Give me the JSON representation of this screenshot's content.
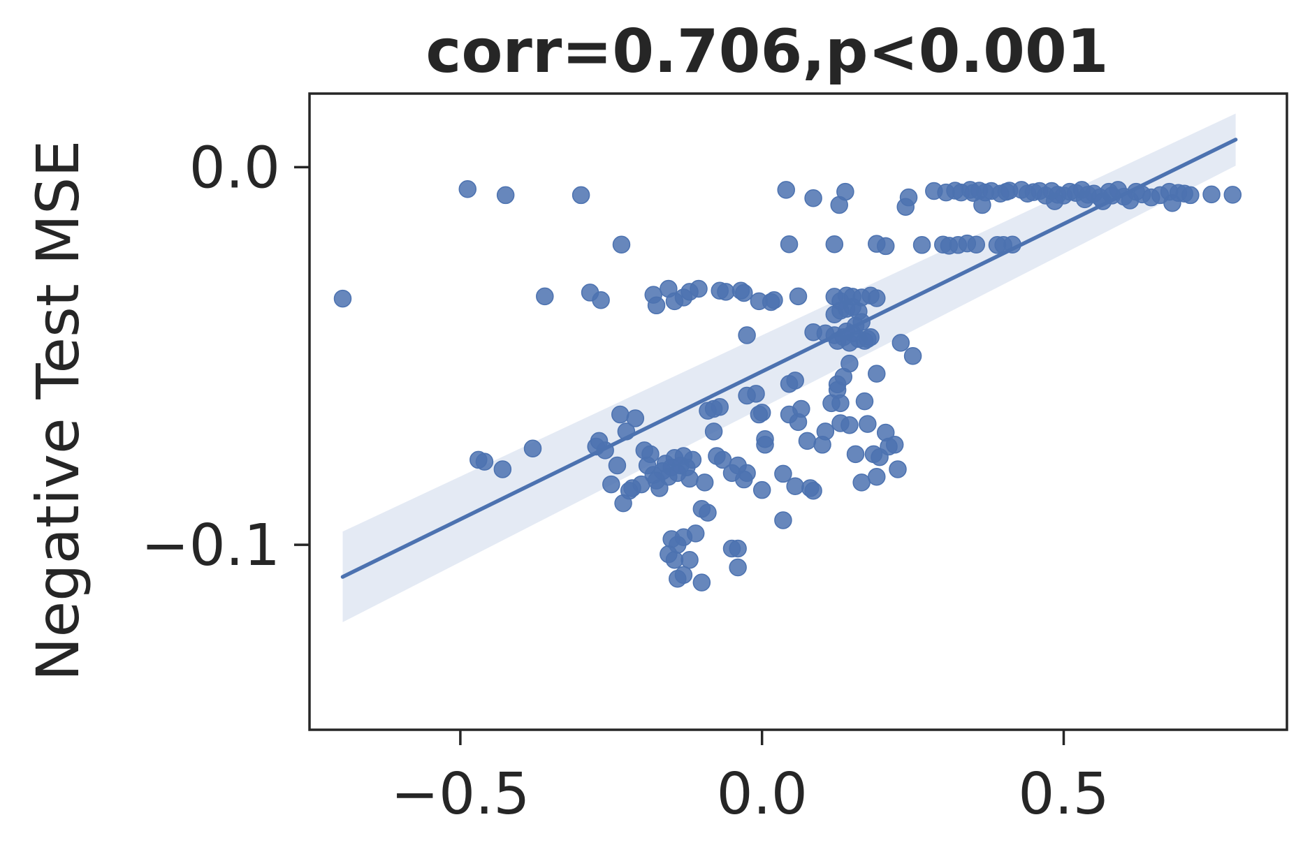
{
  "chart_data": {
    "type": "scatter",
    "title": "corr=0.706,p<0.001",
    "xlabel": "",
    "ylabel": "Negative Test MSE",
    "xlim": [
      -0.75,
      0.87
    ],
    "ylim": [
      -0.149,
      0.0195
    ],
    "x_ticks": [
      -0.5,
      0.0,
      0.5
    ],
    "x_tick_labels": [
      "−0.5",
      "0.0",
      "0.5"
    ],
    "y_ticks": [
      0.0,
      -0.1
    ],
    "y_tick_labels": [
      "0.0",
      "−0.1"
    ],
    "grid": false,
    "colors": {
      "points": "#4c72b0",
      "line": "#4c72b0",
      "band": "#dbe3f0",
      "axes": "#262626"
    },
    "regression": {
      "x": [
        -0.695,
        0.785
      ],
      "y": [
        -0.1085,
        0.0073
      ],
      "band_lower": [
        -0.1205,
        0.0004
      ],
      "band_upper": [
        -0.0965,
        0.0142
      ]
    },
    "points": [
      [
        -0.695,
        -0.0348
      ],
      [
        -0.488,
        -0.0058
      ],
      [
        -0.425,
        -0.0074
      ],
      [
        -0.36,
        -0.0342
      ],
      [
        -0.3,
        -0.0074
      ],
      [
        -0.285,
        -0.0332
      ],
      [
        -0.267,
        -0.0352
      ],
      [
        -0.233,
        -0.0205
      ],
      [
        -0.18,
        -0.0338
      ],
      [
        -0.175,
        -0.0366
      ],
      [
        -0.155,
        -0.0322
      ],
      [
        -0.145,
        -0.0355
      ],
      [
        -0.13,
        -0.0345
      ],
      [
        -0.12,
        -0.033
      ],
      [
        -0.105,
        -0.0322
      ],
      [
        -0.07,
        -0.0327
      ],
      [
        -0.06,
        -0.033
      ],
      [
        -0.035,
        -0.0327
      ],
      [
        -0.03,
        -0.0333
      ],
      [
        -0.025,
        -0.0445
      ],
      [
        -0.005,
        -0.0355
      ],
      [
        0.015,
        -0.0357
      ],
      [
        0.02,
        -0.0352
      ],
      [
        0.06,
        -0.0342
      ],
      [
        0.04,
        -0.006
      ],
      [
        0.045,
        -0.0204
      ],
      [
        0.085,
        -0.0082
      ],
      [
        0.12,
        -0.0204
      ],
      [
        0.128,
        -0.01
      ],
      [
        0.138,
        -0.0065
      ],
      [
        0.19,
        -0.0203
      ],
      [
        0.205,
        -0.0209
      ],
      [
        0.238,
        -0.0105
      ],
      [
        0.243,
        -0.008
      ],
      [
        0.265,
        -0.0206
      ],
      [
        0.285,
        -0.0063
      ],
      [
        0.3,
        -0.0205
      ],
      [
        0.305,
        -0.0067
      ],
      [
        0.31,
        -0.0208
      ],
      [
        0.32,
        -0.0062
      ],
      [
        0.325,
        -0.0206
      ],
      [
        0.33,
        -0.0067
      ],
      [
        0.34,
        -0.0202
      ],
      [
        0.345,
        -0.006
      ],
      [
        0.35,
        -0.0068
      ],
      [
        0.355,
        -0.0205
      ],
      [
        0.36,
        -0.0062
      ],
      [
        0.365,
        -0.01
      ],
      [
        0.37,
        -0.0067
      ],
      [
        0.38,
        -0.0063
      ],
      [
        0.39,
        -0.0206
      ],
      [
        0.395,
        -0.007
      ],
      [
        0.4,
        -0.0206
      ],
      [
        0.405,
        -0.0065
      ],
      [
        0.41,
        -0.0062
      ],
      [
        0.415,
        -0.0205
      ],
      [
        0.43,
        -0.006
      ],
      [
        0.44,
        -0.007
      ],
      [
        0.45,
        -0.0066
      ],
      [
        0.46,
        -0.0063
      ],
      [
        0.47,
        -0.0075
      ],
      [
        0.48,
        -0.0063
      ],
      [
        0.485,
        -0.009
      ],
      [
        0.49,
        -0.0073
      ],
      [
        0.5,
        -0.0075
      ],
      [
        0.51,
        -0.0065
      ],
      [
        0.52,
        -0.0068
      ],
      [
        0.53,
        -0.006
      ],
      [
        0.535,
        -0.0085
      ],
      [
        0.54,
        -0.0073
      ],
      [
        0.55,
        -0.007
      ],
      [
        0.56,
        -0.008
      ],
      [
        0.565,
        -0.009
      ],
      [
        0.575,
        -0.0065
      ],
      [
        0.58,
        -0.0075
      ],
      [
        0.59,
        -0.006
      ],
      [
        0.6,
        -0.0078
      ],
      [
        0.61,
        -0.0088
      ],
      [
        0.62,
        -0.0065
      ],
      [
        0.63,
        -0.0072
      ],
      [
        0.645,
        -0.008
      ],
      [
        0.66,
        -0.0074
      ],
      [
        0.675,
        -0.0065
      ],
      [
        0.68,
        -0.0095
      ],
      [
        0.69,
        -0.0068
      ],
      [
        0.7,
        -0.007
      ],
      [
        0.71,
        -0.0074
      ],
      [
        0.745,
        -0.0072
      ],
      [
        0.78,
        -0.0073
      ],
      [
        0.12,
        -0.0343
      ],
      [
        0.13,
        -0.0355
      ],
      [
        0.14,
        -0.034
      ],
      [
        0.15,
        -0.0343
      ],
      [
        0.165,
        -0.0345
      ],
      [
        0.18,
        -0.034
      ],
      [
        0.19,
        -0.0347
      ],
      [
        0.12,
        -0.039
      ],
      [
        0.13,
        -0.038
      ],
      [
        0.14,
        -0.0375
      ],
      [
        0.15,
        -0.037
      ],
      [
        0.16,
        -0.0382
      ],
      [
        0.085,
        -0.0437
      ],
      [
        0.105,
        -0.044
      ],
      [
        0.12,
        -0.0445
      ],
      [
        0.125,
        -0.046
      ],
      [
        0.135,
        -0.045
      ],
      [
        0.14,
        -0.0435
      ],
      [
        0.145,
        -0.0465
      ],
      [
        0.15,
        -0.044
      ],
      [
        0.155,
        -0.042
      ],
      [
        0.16,
        -0.0455
      ],
      [
        0.165,
        -0.041
      ],
      [
        0.17,
        -0.046
      ],
      [
        0.175,
        -0.0455
      ],
      [
        0.18,
        -0.045
      ],
      [
        0.23,
        -0.0465
      ],
      [
        0.25,
        -0.05
      ],
      [
        0.19,
        -0.0547
      ],
      [
        0.135,
        -0.0555
      ],
      [
        0.125,
        -0.059
      ],
      [
        0.13,
        -0.0625
      ],
      [
        0.115,
        -0.0625
      ],
      [
        0.13,
        -0.0678
      ],
      [
        0.17,
        -0.062
      ],
      [
        0.175,
        -0.068
      ],
      [
        0.145,
        -0.0683
      ],
      [
        0.155,
        -0.076
      ],
      [
        0.185,
        -0.076
      ],
      [
        0.165,
        -0.0835
      ],
      [
        0.19,
        -0.082
      ],
      [
        0.195,
        -0.0768
      ],
      [
        0.205,
        -0.0703
      ],
      [
        0.21,
        -0.074
      ],
      [
        0.22,
        -0.0735
      ],
      [
        0.225,
        -0.08
      ],
      [
        0.045,
        -0.0574
      ],
      [
        0.055,
        -0.0565
      ],
      [
        0.045,
        -0.0655
      ],
      [
        0.065,
        -0.064
      ],
      [
        0.06,
        -0.0675
      ],
      [
        0.075,
        -0.0725
      ],
      [
        0.1,
        -0.0735
      ],
      [
        0.105,
        -0.07
      ],
      [
        0.0,
        -0.065
      ],
      [
        -0.01,
        -0.06
      ],
      [
        -0.005,
        -0.0655
      ],
      [
        0.005,
        -0.0735
      ],
      [
        0.035,
        -0.0812
      ],
      [
        0.055,
        -0.0845
      ],
      [
        0.08,
        -0.085
      ],
      [
        0.085,
        -0.0857
      ],
      [
        0.035,
        -0.0935
      ],
      [
        0.0,
        -0.0855
      ],
      [
        -0.025,
        -0.081
      ],
      [
        -0.03,
        -0.0827
      ],
      [
        -0.07,
        -0.0635
      ],
      [
        -0.08,
        -0.064
      ],
      [
        -0.09,
        -0.0645
      ],
      [
        -0.08,
        -0.07
      ],
      [
        -0.075,
        -0.0765
      ],
      [
        -0.065,
        -0.0775
      ],
      [
        -0.095,
        -0.0835
      ],
      [
        -0.09,
        -0.0915
      ],
      [
        -0.1,
        -0.0905
      ],
      [
        -0.12,
        -0.0825
      ],
      [
        -0.125,
        -0.0795
      ],
      [
        -0.115,
        -0.0775
      ],
      [
        -0.13,
        -0.0765
      ],
      [
        -0.135,
        -0.079
      ],
      [
        -0.14,
        -0.081
      ],
      [
        -0.145,
        -0.077
      ],
      [
        -0.15,
        -0.0795
      ],
      [
        -0.155,
        -0.082
      ],
      [
        -0.16,
        -0.0785
      ],
      [
        -0.165,
        -0.0805
      ],
      [
        -0.17,
        -0.085
      ],
      [
        -0.175,
        -0.083
      ],
      [
        -0.18,
        -0.0815
      ],
      [
        -0.185,
        -0.076
      ],
      [
        -0.19,
        -0.079
      ],
      [
        -0.195,
        -0.075
      ],
      [
        -0.2,
        -0.084
      ],
      [
        -0.21,
        -0.0665
      ],
      [
        -0.215,
        -0.085
      ],
      [
        -0.22,
        -0.0857
      ],
      [
        -0.225,
        -0.07
      ],
      [
        -0.23,
        -0.089
      ],
      [
        -0.235,
        -0.0655
      ],
      [
        -0.24,
        -0.079
      ],
      [
        -0.25,
        -0.084
      ],
      [
        -0.26,
        -0.075
      ],
      [
        -0.275,
        -0.074
      ],
      [
        -0.27,
        -0.0725
      ],
      [
        -0.38,
        -0.0745
      ],
      [
        -0.47,
        -0.0775
      ],
      [
        -0.46,
        -0.078
      ],
      [
        -0.43,
        -0.08
      ],
      [
        -0.15,
        -0.0985
      ],
      [
        -0.14,
        -0.1
      ],
      [
        -0.13,
        -0.098
      ],
      [
        -0.12,
        -0.104
      ],
      [
        -0.155,
        -0.1025
      ],
      [
        -0.145,
        -0.104
      ],
      [
        -0.14,
        -0.109
      ],
      [
        -0.13,
        -0.108
      ],
      [
        -0.1,
        -0.11
      ],
      [
        -0.11,
        -0.097
      ],
      [
        -0.05,
        -0.101
      ],
      [
        -0.04,
        -0.101
      ],
      [
        -0.04,
        -0.106
      ],
      [
        -0.04,
        -0.079
      ],
      [
        -0.05,
        -0.081
      ],
      [
        0.005,
        -0.072
      ],
      [
        0.125,
        -0.0575
      ],
      [
        0.145,
        -0.052
      ],
      [
        -0.025,
        -0.0605
      ]
    ]
  }
}
